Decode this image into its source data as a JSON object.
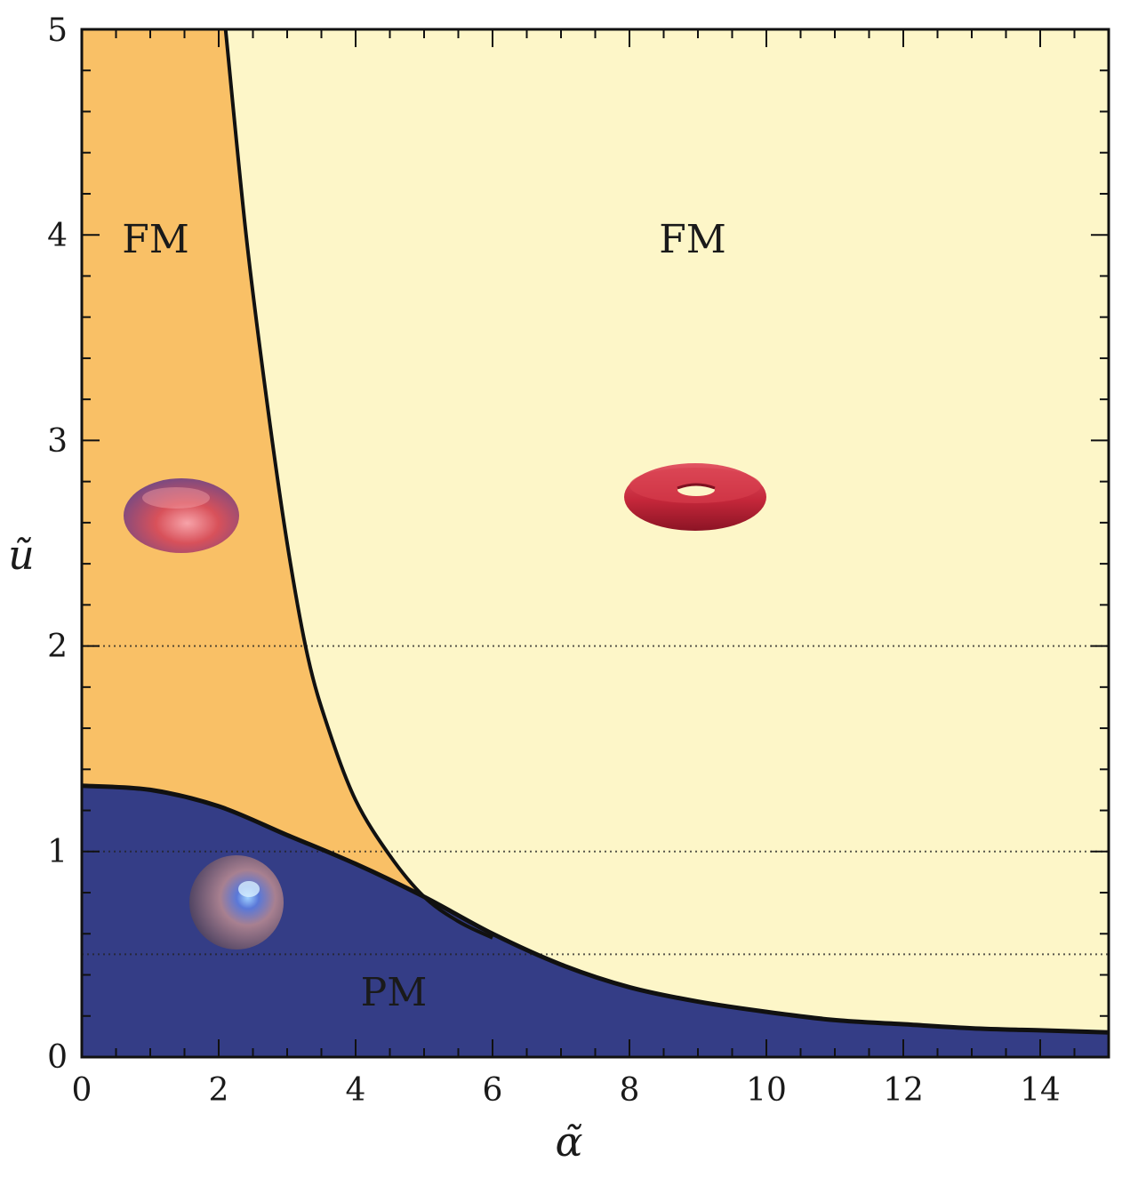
{
  "chart_data": {
    "type": "area",
    "title": "",
    "xlabel": "α̃",
    "ylabel": "ũ",
    "xlim": [
      0,
      15
    ],
    "ylim": [
      0,
      5
    ],
    "x_ticks": [
      "0",
      "2",
      "4",
      "6",
      "8",
      "10",
      "12",
      "14"
    ],
    "y_ticks": [
      "0",
      "1",
      "2",
      "3",
      "4",
      "5"
    ],
    "grid": false,
    "reference_lines_y": [
      2,
      1,
      0.5
    ],
    "colors": {
      "pm_region": "#343d86",
      "fm_left_region": "#f9c066",
      "fm_right_region": "#fdf6c8",
      "boundary": "#111111",
      "droplet_red": "#c4273a",
      "droplet_blue": "#6e77c6"
    },
    "series": [
      {
        "name": "PM",
        "x": [
          0,
          1,
          2,
          3,
          4,
          5,
          6,
          7,
          8,
          9,
          10,
          11,
          12,
          13,
          14,
          15
        ],
        "y": [
          1.32,
          1.3,
          1.22,
          1.08,
          0.94,
          0.78,
          0.6,
          0.45,
          0.34,
          0.27,
          0.22,
          0.18,
          0.16,
          0.14,
          0.13,
          0.12
        ]
      },
      {
        "name": "FM",
        "x": [
          2.1,
          2.4,
          2.7,
          3.0,
          3.3,
          3.6,
          4.0,
          4.5,
          5.0,
          5.5,
          6.0
        ],
        "y": [
          5.0,
          4.0,
          3.2,
          2.5,
          1.95,
          1.6,
          1.25,
          0.98,
          0.78,
          0.66,
          0.58
        ]
      }
    ],
    "annotations": [
      {
        "text": "FM",
        "x": 1.1,
        "y": 3.92
      },
      {
        "text": "FM",
        "x": 8.9,
        "y": 3.92
      },
      {
        "text": "PM",
        "x": 4.9,
        "y": 0.27
      }
    ]
  },
  "icons": [
    "oblate-droplet-icon",
    "torus-droplet-icon",
    "sphere-droplet-icon"
  ]
}
